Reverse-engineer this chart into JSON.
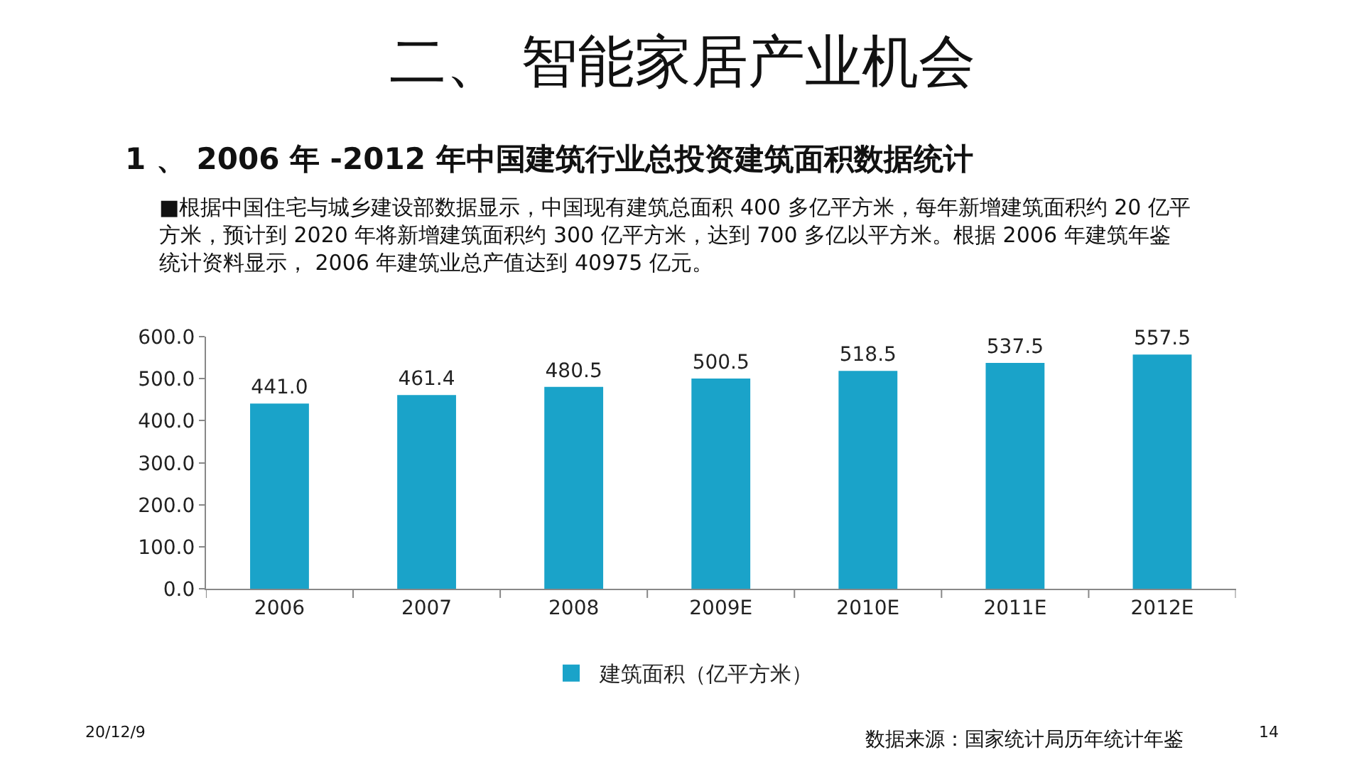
{
  "chart_data": {
    "type": "bar",
    "title": "二、 智能家居产业机会",
    "subtitle": "1 、 2006 年 -2012 年中国建筑行业总投资建筑面积数据统计",
    "categories": [
      "2006",
      "2007",
      "2008",
      "2009E",
      "2010E",
      "2011E",
      "2012E"
    ],
    "series": [
      {
        "name": "建筑面积（亿平方米）",
        "color": "#1aa3c9",
        "values": [
          441.0,
          461.4,
          480.5,
          500.5,
          518.5,
          537.5,
          557.5
        ],
        "value_labels": [
          "441.0",
          "461.4",
          "480.5",
          "500.5",
          "518.5",
          "537.5",
          "557.5"
        ]
      }
    ],
    "ylim": [
      0,
      600
    ],
    "yticks": [
      {
        "value": 0,
        "label": "0.0"
      },
      {
        "value": 100,
        "label": "100.0"
      },
      {
        "value": 200,
        "label": "200.0"
      },
      {
        "value": 300,
        "label": "300.0"
      },
      {
        "value": 400,
        "label": "400.0"
      },
      {
        "value": 500,
        "label": "500.0"
      },
      {
        "value": 600,
        "label": "600.0"
      }
    ],
    "legend": "bottom",
    "annotations": [
      "■根据中国住宅与城乡建设部数据显示，中国现有建筑总面积 400 多亿平方米，每年新增建筑面积约 20 亿平方米，预计到 2020 年将新增建筑面积约 300 亿平方米，达到 700 多亿以平方米。根据 2006 年建筑年鉴统计资料显示， 2006 年建筑业总产值达到 40975 亿元。",
      "20/12/9",
      "14",
      "数据来源：国家统计局历年统计年鉴"
    ]
  }
}
